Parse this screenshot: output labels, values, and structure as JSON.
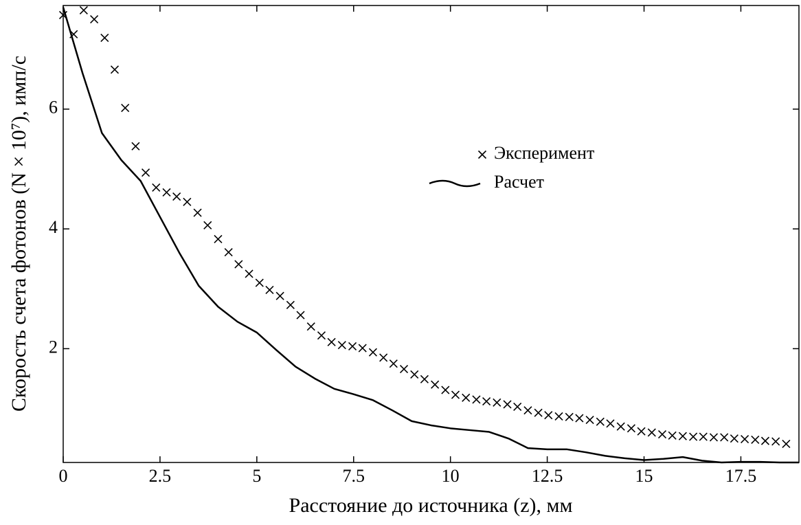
{
  "chart_data": {
    "type": "scatter+line",
    "xlabel": "Расстояние до источника (z), мм",
    "ylabel": "Скорость счета фотонов (N × 10⁷), имп/с",
    "xlim": [
      0,
      19
    ],
    "ylim": [
      0.1,
      7.73
    ],
    "xticks": [
      0,
      2.5,
      5,
      7.5,
      10,
      12.5,
      15,
      17.5
    ],
    "yticks": [
      2,
      4,
      6
    ],
    "legend": "center right",
    "series": [
      {
        "name": "Эксперимент",
        "kind": "scatter",
        "color": "#000000",
        "x": [
          0,
          0.27,
          0.53,
          0.8,
          1.07,
          1.33,
          1.6,
          1.87,
          2.13,
          2.4,
          2.67,
          2.93,
          3.2,
          3.47,
          3.73,
          4,
          4.27,
          4.53,
          4.8,
          5.07,
          5.33,
          5.6,
          5.87,
          6.13,
          6.4,
          6.67,
          6.93,
          7.2,
          7.47,
          7.73,
          8,
          8.27,
          8.53,
          8.8,
          9.07,
          9.33,
          9.6,
          9.87,
          10.13,
          10.4,
          10.67,
          10.93,
          11.2,
          11.47,
          11.73,
          12,
          12.27,
          12.53,
          12.8,
          13.07,
          13.33,
          13.6,
          13.87,
          14.13,
          14.4,
          14.67,
          14.93,
          15.2,
          15.47,
          15.73,
          16,
          16.27,
          16.53,
          16.8,
          17.07,
          17.33,
          17.6,
          17.87,
          18.13,
          18.4,
          18.67
        ],
        "values": [
          7.57,
          7.25,
          7.65,
          7.5,
          7.19,
          6.66,
          6.02,
          5.38,
          4.94,
          4.69,
          4.61,
          4.54,
          4.45,
          4.27,
          4.06,
          3.83,
          3.61,
          3.41,
          3.25,
          3.1,
          2.98,
          2.88,
          2.73,
          2.56,
          2.37,
          2.22,
          2.11,
          2.06,
          2.04,
          2.01,
          1.94,
          1.85,
          1.75,
          1.66,
          1.57,
          1.49,
          1.4,
          1.31,
          1.23,
          1.18,
          1.15,
          1.12,
          1.1,
          1.07,
          1.03,
          0.97,
          0.93,
          0.89,
          0.87,
          0.86,
          0.84,
          0.81,
          0.78,
          0.75,
          0.7,
          0.67,
          0.62,
          0.6,
          0.57,
          0.55,
          0.54,
          0.53,
          0.53,
          0.52,
          0.52,
          0.5,
          0.49,
          0.48,
          0.46,
          0.45,
          0.41
        ]
      },
      {
        "name": "Расчет",
        "kind": "line",
        "color": "#000000",
        "x": [
          0,
          0.5,
          1,
          1.5,
          2,
          2.5,
          3,
          3.5,
          4,
          4.5,
          5,
          5.5,
          6,
          6.5,
          7,
          7.5,
          8,
          8.5,
          9,
          9.5,
          10,
          10.5,
          11,
          11.5,
          12,
          12.5,
          13,
          13.5,
          14,
          14.5,
          15,
          15.5,
          16,
          16.5,
          17,
          17.5,
          18,
          18.5,
          19
        ],
        "values": [
          7.7,
          6.6,
          5.6,
          5.15,
          4.8,
          4.2,
          3.6,
          3.05,
          2.7,
          2.45,
          2.27,
          1.98,
          1.7,
          1.5,
          1.33,
          1.24,
          1.14,
          0.97,
          0.79,
          0.72,
          0.67,
          0.64,
          0.61,
          0.5,
          0.34,
          0.32,
          0.32,
          0.27,
          0.21,
          0.17,
          0.14,
          0.16,
          0.19,
          0.13,
          0.1,
          0.11,
          0.11,
          0.1,
          0.1
        ]
      }
    ]
  }
}
